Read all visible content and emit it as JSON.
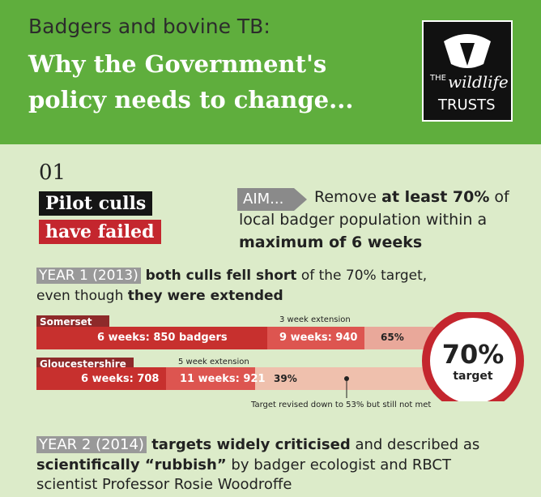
{
  "header": {
    "subtitle": "Badgers and bovine TB:",
    "title_lines": [
      "Why the Government's",
      "policy needs to change..."
    ],
    "logo": {
      "the": "THE",
      "name": "wildlife",
      "trusts": "TRUSTS"
    }
  },
  "section": {
    "number": "01",
    "heading_lines": [
      "Pilot culls",
      "have failed"
    ]
  },
  "aim": {
    "label": "AIM...",
    "lines": [
      [
        "Remove ",
        "at least 70%",
        " of"
      ],
      [
        "local badger population within a"
      ],
      [
        "maximum of 6 weeks"
      ]
    ]
  },
  "year1": {
    "label": "YEAR 1 (2013)",
    "lines": [
      [
        " both culls fell short",
        " of the 70% target,"
      ],
      [
        "even though ",
        "they were extended"
      ]
    ]
  },
  "rows": [
    {
      "name": "Somerset",
      "initial": "6 weeks: 850 badgers",
      "extension_note": "3 week extension",
      "extended": "9 weeks: 940",
      "result": "65%"
    },
    {
      "name": "Gloucestershire",
      "initial": "6 weeks: 708",
      "extension_note": "5 week extension",
      "extended": "11 weeks: 921",
      "result": "39%"
    }
  ],
  "note": "Target revised down to 53% but still not met",
  "target": {
    "value": "70%",
    "label": "target"
  },
  "year2": {
    "label": "YEAR 2 (2014)",
    "lines": [
      [
        " targets widely criticised",
        " and described as"
      ],
      [
        "scientifically “rubbish”",
        " by badger ecologist and RBCT"
      ],
      [
        "scientist Professor Rosie Woodroffe"
      ]
    ]
  }
}
